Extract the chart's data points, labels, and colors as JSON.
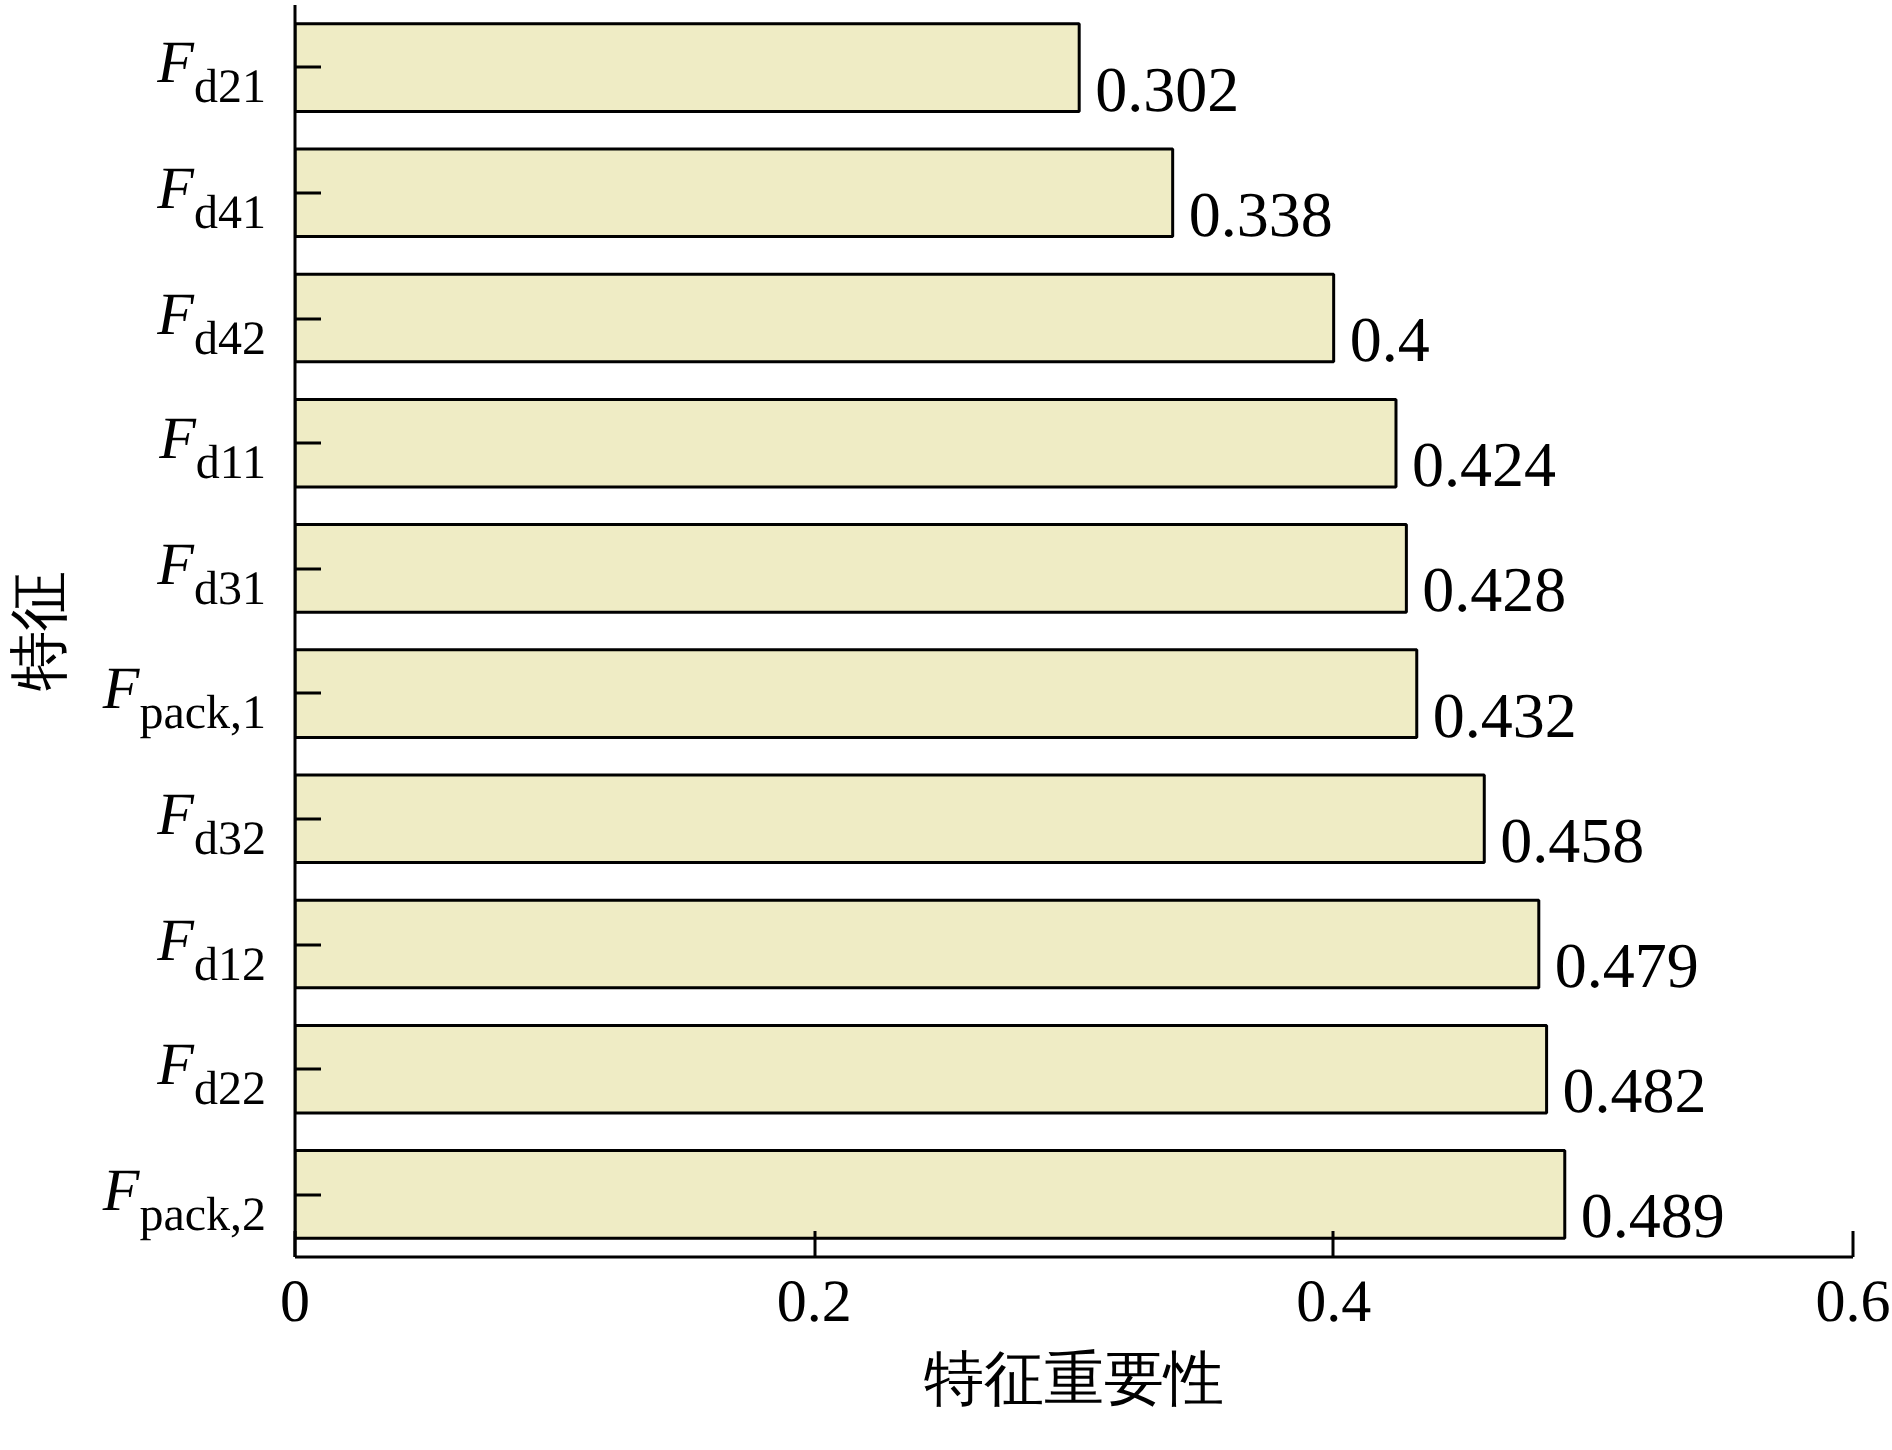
{
  "chart_data": {
    "type": "bar",
    "orientation": "horizontal",
    "xlabel": "特征重要性",
    "ylabel": "特征",
    "categories": [
      "F$_{d21}$",
      "F$_{d41}$",
      "F$_{d42}$",
      "F$_{d11}$",
      "F$_{d31}$",
      "F$_{pack,1}$",
      "F$_{d32}$",
      "F$_{d12}$",
      "F$_{d22}$",
      "F$_{pack,2}$"
    ],
    "values": [
      0.302,
      0.338,
      0.4,
      0.424,
      0.428,
      0.432,
      0.458,
      0.479,
      0.482,
      0.489
    ],
    "color": "#efecc5",
    "xlim": [
      0,
      0.6
    ],
    "xticks": [
      0,
      0.2,
      0.4,
      0.6
    ],
    "data_labels": true
  }
}
